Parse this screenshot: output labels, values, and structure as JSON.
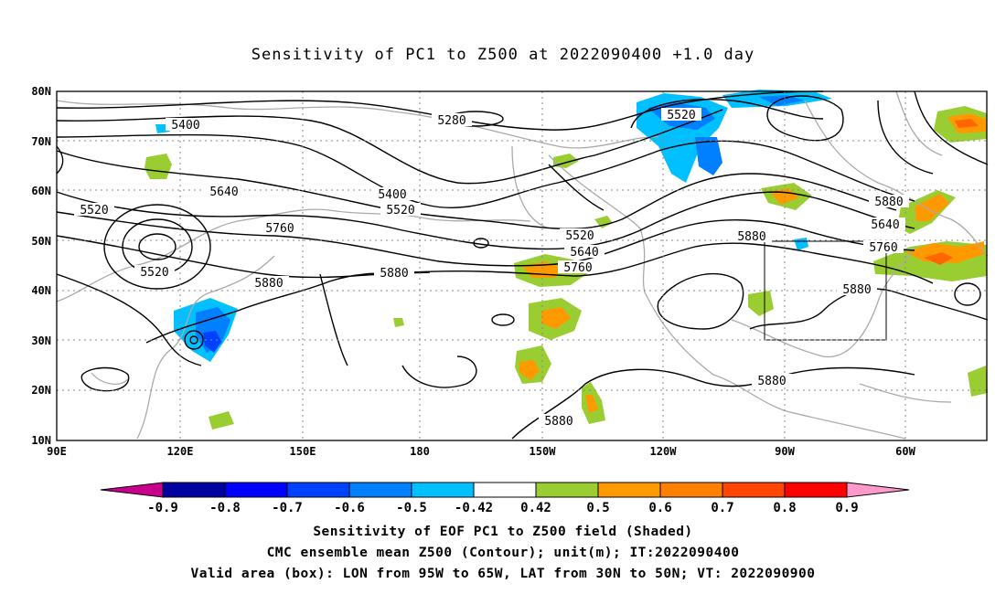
{
  "title": "Sensitivity of PC1 to Z500 at 2022090400 +1.0 day",
  "map": {
    "lat_labels": [
      "80N",
      "70N",
      "60N",
      "50N",
      "40N",
      "30N",
      "20N",
      "10N"
    ],
    "lon_labels": [
      "90E",
      "120E",
      "150E",
      "180",
      "150W",
      "120W",
      "90W",
      "60W"
    ],
    "contour_labels": [
      "5400",
      "5280",
      "5520",
      "5640",
      "5400",
      "5520",
      "5760",
      "5520",
      "5880",
      "5520",
      "5640",
      "5760",
      "5880",
      "5880",
      "5880",
      "5520",
      "5640",
      "5760",
      "5880",
      "5880",
      "5880"
    ],
    "valid_box": {
      "lon": [
        "95W",
        "65W"
      ],
      "lat": [
        "30N",
        "50N"
      ]
    },
    "colors": {
      "green": "#9acd32",
      "orange": "#ff9900",
      "darkorange": "#ff6600",
      "lightblue": "#00c0ff",
      "blue": "#0080ff",
      "deepblue": "#0040ff"
    }
  },
  "colorbar": {
    "labels": [
      "-0.9",
      "-0.8",
      "-0.7",
      "-0.6",
      "-0.5",
      "-0.42",
      "0.42",
      "0.5",
      "0.6",
      "0.7",
      "0.8",
      "0.9"
    ],
    "colors": [
      "#c8008c",
      "#0000a0",
      "#0000ff",
      "#0040ff",
      "#0080ff",
      "#00c0ff",
      "#ffffff",
      "#9acd32",
      "#ff9900",
      "#ff7f00",
      "#ff4500",
      "#ff0000",
      "#ff99cc"
    ]
  },
  "caption": {
    "line1": "Sensitivity of EOF PC1 to Z500 field (Shaded)",
    "line2": "CMC ensemble mean Z500 (Contour); unit(m); IT:2022090400",
    "line3": "Valid area (box): LON from 95W to 65W, LAT from 30N to 50N; VT: 2022090900"
  }
}
